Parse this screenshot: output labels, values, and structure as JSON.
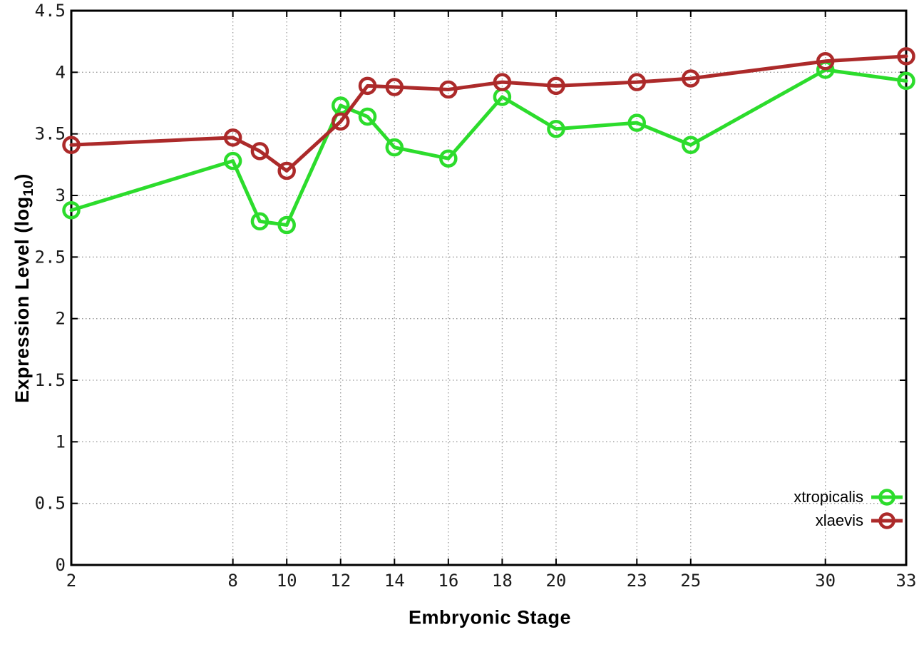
{
  "titles": {
    "x": "Embryonic Stage",
    "y_prefix": "Expression Level (log",
    "y_sub": "10",
    "y_suffix": ")"
  },
  "chart_data": {
    "type": "line",
    "title": "",
    "xlabel": "Embryonic Stage",
    "ylabel": "Expression Level (log10)",
    "x": [
      2,
      8,
      9,
      10,
      12,
      13,
      14,
      16,
      18,
      20,
      23,
      25,
      30,
      33
    ],
    "series": [
      {
        "name": "xtropicalis",
        "color": "#2CDC2C",
        "values": [
          2.88,
          3.28,
          2.79,
          2.76,
          3.73,
          3.64,
          3.39,
          3.3,
          3.8,
          3.54,
          3.59,
          3.41,
          4.02,
          3.93
        ]
      },
      {
        "name": "xlaevis",
        "color": "#AC2A2A",
        "values": [
          3.41,
          3.47,
          3.36,
          3.2,
          3.6,
          3.89,
          3.88,
          3.86,
          3.92,
          3.89,
          3.92,
          3.95,
          4.09,
          4.13
        ]
      }
    ],
    "xlim": [
      2,
      33
    ],
    "ylim": [
      0,
      4.5
    ],
    "x_ticks": [
      2,
      8,
      10,
      12,
      14,
      16,
      18,
      20,
      23,
      25,
      30,
      33
    ],
    "y_ticks": [
      0,
      0.5,
      1,
      1.5,
      2,
      2.5,
      3,
      3.5,
      4,
      4.5
    ],
    "grid": true,
    "legend_position": "inside-bottom-right",
    "marker": "open-circle"
  },
  "style": {
    "background": "#ffffff",
    "axis_color": "#000000",
    "grid_color": "#9a9a9a",
    "tick_text_color": "#1a1a1a"
  }
}
